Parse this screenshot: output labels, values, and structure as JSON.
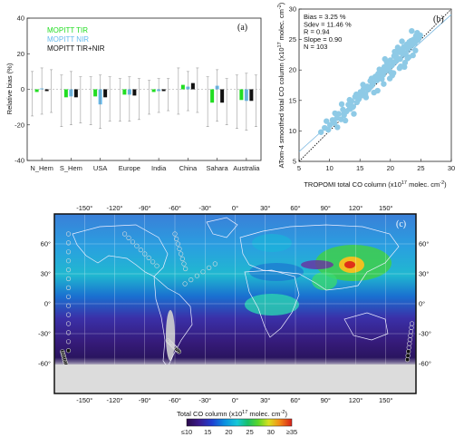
{
  "chart_data": [
    {
      "type": "bar",
      "panel_label": "(a)",
      "ylabel": "Relative bias (%)",
      "ylim": [
        -40,
        40
      ],
      "yticks": [
        -40,
        -20,
        0,
        20,
        40
      ],
      "categories": [
        "N_Hem",
        "S_Hem",
        "USA",
        "Europe",
        "India",
        "China",
        "Sahara",
        "Australia"
      ],
      "series": [
        {
          "name": "MOPITT TIR",
          "color": "#22dd22",
          "values": [
            -1.5,
            -4.5,
            -4.0,
            -3.0,
            -1.5,
            2.5,
            -7.5,
            -6.0
          ],
          "error_low": [
            -15,
            -21,
            -20,
            -18,
            -14,
            -14,
            -21,
            -22
          ],
          "error_high": [
            10,
            8,
            7,
            6,
            5,
            12,
            7,
            8
          ]
        },
        {
          "name": "MOPITT NIR",
          "color": "#66bbee",
          "values": [
            0.5,
            -4.0,
            -8.5,
            -3.0,
            -1.0,
            1.5,
            2.0,
            -6.5
          ],
          "error_low": [
            -14,
            -20,
            -22,
            -18,
            -13,
            -12,
            -18,
            -23
          ],
          "error_high": [
            12,
            10,
            8,
            7,
            6,
            10,
            11,
            9
          ]
        },
        {
          "name": "MOPITT TIR+NIR",
          "color": "#111111",
          "values": [
            -1.0,
            -4.5,
            -4.5,
            -3.5,
            -1.0,
            3.5,
            -7.5,
            -6.5
          ],
          "error_low": [
            -13,
            -19,
            -18,
            -17,
            -12,
            -13,
            -20,
            -21
          ],
          "error_high": [
            11,
            7,
            7,
            6,
            6,
            12,
            6,
            8
          ]
        }
      ]
    },
    {
      "type": "scatter",
      "panel_label": "(b)",
      "xlabel": "TROPOMI total CO column (x10",
      "xlabel_exp": "17",
      "xlabel_tail": " molec. cm",
      "xlabel_tail_exp": "-2",
      "xlabel_end": ")",
      "ylabel": "ATom-4 smoothed total CO column (x10",
      "ylabel_exp": "17",
      "ylabel_tail": " molec. cm",
      "ylabel_tail_exp": "-2",
      "ylabel_end": ")",
      "xlim": [
        5,
        30
      ],
      "ylim": [
        5,
        30
      ],
      "ticks": [
        5,
        10,
        15,
        20,
        25,
        30
      ],
      "point_color": "#8ecae6",
      "stats": [
        "Bias = 3.25 %",
        "Sdev = 11.46 %",
        "R = 0.94",
        "Slope = 0.90",
        "N = 103"
      ],
      "fit": {
        "slope": 0.9,
        "intercept": 2.1
      },
      "x": [
        8.6,
        9.2,
        9.8,
        10.1,
        10.5,
        10.8,
        11.2,
        11.5,
        11.9,
        12.2,
        12.4,
        12.8,
        13.1,
        13.4,
        13.6,
        13.9,
        14.2,
        14.5,
        14.8,
        15.1,
        15.3,
        15.6,
        15.9,
        16.2,
        16.4,
        16.7,
        17.0,
        17.2,
        17.5,
        17.8,
        18.0,
        18.3,
        18.5,
        18.8,
        19.0,
        19.2,
        19.5,
        19.7,
        20.0,
        20.2,
        20.4,
        20.6,
        20.9,
        21.1,
        21.3,
        21.6,
        21.8,
        22.0,
        22.2,
        22.5,
        22.7,
        22.9,
        23.1,
        23.3,
        23.6,
        23.8,
        24.0,
        24.2,
        24.5,
        24.7,
        9.5,
        10.9,
        12.0,
        13.3,
        14.4,
        15.5,
        16.6,
        17.7,
        18.6,
        19.4,
        20.1,
        20.8,
        21.5,
        22.1,
        22.8,
        23.4,
        24.1,
        11.3,
        13.8,
        16.0,
        18.2,
        19.9,
        21.2,
        22.4,
        23.7,
        12.6,
        15.0,
        17.3,
        19.1,
        20.5,
        21.9,
        23.0,
        24.4,
        14.0,
        16.9,
        18.9,
        20.7,
        22.3,
        23.5,
        17.9,
        20.3,
        21.7,
        24.9
      ],
      "y": [
        9.8,
        10.5,
        10.2,
        11.0,
        11.8,
        11.3,
        12.1,
        12.8,
        11.9,
        13.5,
        12.6,
        13.2,
        14.3,
        13.6,
        14.9,
        14.0,
        15.6,
        14.7,
        15.2,
        16.4,
        15.8,
        16.9,
        16.1,
        17.3,
        16.8,
        18.2,
        17.5,
        17.9,
        18.9,
        18.3,
        19.4,
        18.8,
        19.9,
        19.2,
        20.5,
        19.8,
        20.9,
        20.2,
        21.6,
        20.7,
        21.2,
        22.3,
        21.5,
        22.0,
        22.9,
        21.8,
        23.3,
        22.6,
        23.8,
        22.8,
        24.2,
        23.5,
        24.6,
        23.9,
        24.1,
        25.0,
        24.4,
        25.6,
        24.9,
        25.3,
        11.6,
        12.9,
        14.4,
        15.1,
        16.0,
        17.6,
        17.1,
        19.0,
        18.5,
        21.3,
        19.6,
        22.7,
        20.3,
        23.6,
        21.9,
        24.8,
        23.2,
        10.6,
        13.9,
        15.5,
        20.1,
        18.6,
        23.7,
        21.2,
        22.4,
        11.7,
        15.9,
        16.3,
        21.8,
        19.5,
        24.7,
        22.1,
        26.1,
        12.8,
        18.6,
        17.7,
        23.0,
        20.5,
        26.4,
        16.6,
        19.1,
        20.6,
        25.7
      ]
    },
    {
      "type": "heatmap",
      "panel_label": "(c)",
      "title": "Total CO column (x10",
      "title_exp": "17",
      "title_tail": " molec. cm",
      "title_tail_exp": "-2",
      "title_end": ")",
      "colorbar_ticks": [
        "≤10",
        "15",
        "20",
        "25",
        "30",
        "≥35"
      ],
      "colorbar_range": [
        10,
        35
      ],
      "lon_ticks": [
        "-150°",
        "-120°",
        "-90°",
        "-60°",
        "-30°",
        "0°",
        "30°",
        "60°",
        "90°",
        "120°",
        "150°"
      ],
      "lat_ticks": [
        "60°",
        "30°",
        "0°",
        "-30°",
        "-60°"
      ],
      "lon_values": [
        -150,
        -120,
        -90,
        -60,
        -30,
        0,
        30,
        60,
        90,
        120,
        150
      ],
      "lat_values": [
        60,
        30,
        0,
        -30,
        -60
      ]
    }
  ]
}
